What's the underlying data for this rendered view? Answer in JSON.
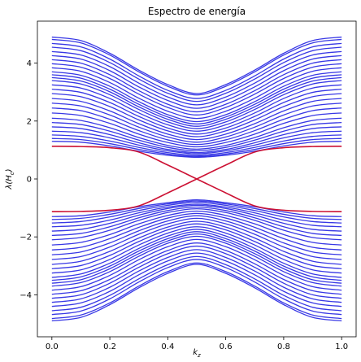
{
  "chart_data": {
    "type": "line",
    "title": "Espectro de energía",
    "xlabel": "k",
    "xlabel_sub": "z",
    "ylabel_pre": "λ(H",
    "ylabel_sub": "c",
    "ylabel_post": ")",
    "xlim": [
      -0.05,
      1.05
    ],
    "ylim": [
      -5.45,
      5.45
    ],
    "xticks": [
      0.0,
      0.2,
      0.4,
      0.6,
      0.8,
      1.0
    ],
    "xtick_labels": [
      "0.0",
      "0.2",
      "0.4",
      "0.6",
      "0.8",
      "1.0"
    ],
    "yticks": [
      -4,
      -2,
      0,
      2,
      4
    ],
    "ytick_labels": [
      "−4",
      "−2",
      "0",
      "2",
      "4"
    ],
    "grid": false,
    "colors": {
      "bulk": "#1515e0",
      "edge": "#cc1133"
    },
    "x": [
      0.0,
      0.1,
      0.2,
      0.3,
      0.4,
      0.5,
      0.6,
      0.7,
      0.8,
      0.9,
      1.0
    ],
    "series": [
      {
        "group": "edge",
        "values": [
          1.13,
          1.12,
          1.08,
          0.93,
          0.48,
          0.0,
          -0.48,
          -0.93,
          -1.08,
          -1.12,
          -1.13
        ]
      },
      {
        "group": "edge",
        "values": [
          -1.13,
          -1.12,
          -1.08,
          -0.93,
          -0.48,
          0.0,
          0.48,
          0.93,
          1.08,
          1.12,
          1.13
        ]
      },
      {
        "group": "bulk",
        "values": [
          4.9,
          4.78,
          4.34,
          3.76,
          3.26,
          2.95,
          3.26,
          3.76,
          4.34,
          4.78,
          4.9
        ]
      },
      {
        "group": "bulk",
        "values": [
          4.82,
          4.7,
          4.28,
          3.7,
          3.2,
          2.9,
          3.2,
          3.7,
          4.28,
          4.7,
          4.82
        ]
      },
      {
        "group": "bulk",
        "values": [
          4.68,
          4.56,
          4.14,
          3.56,
          3.06,
          2.78,
          3.06,
          3.56,
          4.14,
          4.56,
          4.68
        ]
      },
      {
        "group": "bulk",
        "values": [
          4.55,
          4.43,
          4.02,
          3.45,
          2.96,
          2.68,
          2.96,
          3.45,
          4.02,
          4.43,
          4.55
        ]
      },
      {
        "group": "bulk",
        "values": [
          4.4,
          4.28,
          3.88,
          3.31,
          2.83,
          2.56,
          2.83,
          3.31,
          3.88,
          4.28,
          4.4
        ]
      },
      {
        "group": "bulk",
        "values": [
          4.26,
          4.14,
          3.74,
          3.18,
          2.71,
          2.44,
          2.71,
          3.18,
          3.74,
          4.14,
          4.26
        ]
      },
      {
        "group": "bulk",
        "values": [
          4.12,
          4.0,
          3.6,
          3.05,
          2.58,
          2.32,
          2.58,
          3.05,
          3.6,
          4.0,
          4.12
        ]
      },
      {
        "group": "bulk",
        "values": [
          3.98,
          3.86,
          3.47,
          2.93,
          2.47,
          2.21,
          2.47,
          2.93,
          3.47,
          3.86,
          3.98
        ]
      },
      {
        "group": "bulk",
        "values": [
          3.84,
          3.72,
          3.33,
          2.79,
          2.34,
          2.09,
          2.34,
          2.79,
          3.33,
          3.72,
          3.84
        ]
      },
      {
        "group": "bulk",
        "values": [
          3.7,
          3.58,
          3.2,
          2.67,
          2.22,
          1.98,
          2.22,
          2.67,
          3.2,
          3.58,
          3.7
        ]
      },
      {
        "group": "bulk",
        "values": [
          3.6,
          3.48,
          3.1,
          2.58,
          2.14,
          1.9,
          2.14,
          2.58,
          3.1,
          3.48,
          3.6
        ]
      },
      {
        "group": "bulk",
        "values": [
          3.5,
          3.38,
          3.01,
          2.49,
          2.06,
          1.82,
          2.06,
          2.49,
          3.01,
          3.38,
          3.5
        ]
      },
      {
        "group": "bulk",
        "values": [
          3.4,
          3.28,
          2.91,
          2.4,
          1.97,
          1.74,
          1.97,
          2.4,
          2.91,
          3.28,
          3.4
        ]
      },
      {
        "group": "bulk",
        "values": [
          3.25,
          3.14,
          2.78,
          2.28,
          1.87,
          1.65,
          1.87,
          2.28,
          2.78,
          3.14,
          3.25
        ]
      },
      {
        "group": "bulk",
        "values": [
          3.1,
          2.99,
          2.64,
          2.16,
          1.76,
          1.55,
          1.76,
          2.16,
          2.64,
          2.99,
          3.1
        ]
      },
      {
        "group": "bulk",
        "values": [
          2.95,
          2.84,
          2.5,
          2.04,
          1.66,
          1.46,
          1.66,
          2.04,
          2.5,
          2.84,
          2.95
        ]
      },
      {
        "group": "bulk",
        "values": [
          2.78,
          2.68,
          2.35,
          1.91,
          1.55,
          1.36,
          1.55,
          1.91,
          2.35,
          2.68,
          2.78
        ]
      },
      {
        "group": "bulk",
        "values": [
          2.62,
          2.52,
          2.21,
          1.79,
          1.45,
          1.27,
          1.45,
          1.79,
          2.21,
          2.52,
          2.62
        ]
      },
      {
        "group": "bulk",
        "values": [
          2.45,
          2.36,
          2.06,
          1.67,
          1.35,
          1.19,
          1.35,
          1.67,
          2.06,
          2.36,
          2.45
        ]
      },
      {
        "group": "bulk",
        "values": [
          2.28,
          2.19,
          1.92,
          1.55,
          1.26,
          1.11,
          1.26,
          1.55,
          1.92,
          2.19,
          2.28
        ]
      },
      {
        "group": "bulk",
        "values": [
          2.1,
          2.02,
          1.77,
          1.43,
          1.16,
          1.03,
          1.16,
          1.43,
          1.77,
          2.02,
          2.1
        ]
      },
      {
        "group": "bulk",
        "values": [
          1.95,
          1.88,
          1.65,
          1.34,
          1.09,
          0.97,
          1.09,
          1.34,
          1.65,
          1.88,
          1.95
        ]
      },
      {
        "group": "bulk",
        "values": [
          1.8,
          1.74,
          1.53,
          1.25,
          1.02,
          0.91,
          1.02,
          1.25,
          1.53,
          1.74,
          1.8
        ]
      },
      {
        "group": "bulk",
        "values": [
          1.65,
          1.6,
          1.42,
          1.17,
          0.97,
          0.87,
          0.97,
          1.17,
          1.42,
          1.6,
          1.65
        ]
      },
      {
        "group": "bulk",
        "values": [
          1.52,
          1.47,
          1.31,
          1.09,
          0.91,
          0.82,
          0.91,
          1.09,
          1.31,
          1.47,
          1.52
        ]
      },
      {
        "group": "bulk",
        "values": [
          1.4,
          1.36,
          1.22,
          1.02,
          0.86,
          0.78,
          0.86,
          1.02,
          1.22,
          1.36,
          1.4
        ]
      },
      {
        "group": "bulk",
        "values": [
          1.3,
          1.27,
          1.14,
          0.96,
          0.82,
          0.75,
          0.82,
          0.96,
          1.14,
          1.27,
          1.3
        ]
      },
      {
        "group": "bulk",
        "values": [
          -1.3,
          -1.27,
          -1.14,
          -0.96,
          -0.82,
          -0.72,
          -0.82,
          -0.96,
          -1.14,
          -1.27,
          -1.3
        ]
      },
      {
        "group": "bulk",
        "values": [
          -1.4,
          -1.36,
          -1.22,
          -1.02,
          -0.86,
          -0.76,
          -0.86,
          -1.02,
          -1.22,
          -1.36,
          -1.4
        ]
      },
      {
        "group": "bulk",
        "values": [
          -1.52,
          -1.47,
          -1.31,
          -1.09,
          -0.91,
          -0.81,
          -0.91,
          -1.09,
          -1.31,
          -1.47,
          -1.52
        ]
      },
      {
        "group": "bulk",
        "values": [
          -1.65,
          -1.6,
          -1.42,
          -1.17,
          -0.97,
          -0.87,
          -0.97,
          -1.17,
          -1.42,
          -1.6,
          -1.65
        ]
      },
      {
        "group": "bulk",
        "values": [
          -1.8,
          -1.74,
          -1.53,
          -1.25,
          -1.02,
          -0.91,
          -1.02,
          -1.25,
          -1.53,
          -1.74,
          -1.8
        ]
      },
      {
        "group": "bulk",
        "values": [
          -1.95,
          -1.88,
          -1.65,
          -1.34,
          -1.09,
          -0.97,
          -1.09,
          -1.34,
          -1.65,
          -1.88,
          -1.95
        ]
      },
      {
        "group": "bulk",
        "values": [
          -2.1,
          -2.02,
          -1.77,
          -1.43,
          -1.16,
          -1.03,
          -1.16,
          -1.43,
          -1.77,
          -2.02,
          -2.1
        ]
      },
      {
        "group": "bulk",
        "values": [
          -2.28,
          -2.19,
          -1.92,
          -1.55,
          -1.26,
          -1.11,
          -1.26,
          -1.55,
          -1.92,
          -2.19,
          -2.28
        ]
      },
      {
        "group": "bulk",
        "values": [
          -2.45,
          -2.36,
          -2.06,
          -1.67,
          -1.35,
          -1.19,
          -1.35,
          -1.67,
          -2.06,
          -2.36,
          -2.45
        ]
      },
      {
        "group": "bulk",
        "values": [
          -2.62,
          -2.52,
          -2.21,
          -1.79,
          -1.45,
          -1.27,
          -1.45,
          -1.79,
          -2.21,
          -2.52,
          -2.62
        ]
      },
      {
        "group": "bulk",
        "values": [
          -2.78,
          -2.68,
          -2.35,
          -1.91,
          -1.55,
          -1.36,
          -1.55,
          -1.91,
          -2.35,
          -2.68,
          -2.78
        ]
      },
      {
        "group": "bulk",
        "values": [
          -2.95,
          -2.84,
          -2.5,
          -2.04,
          -1.66,
          -1.46,
          -1.66,
          -2.04,
          -2.5,
          -2.84,
          -2.95
        ]
      },
      {
        "group": "bulk",
        "values": [
          -3.1,
          -2.99,
          -2.64,
          -2.16,
          -1.76,
          -1.55,
          -1.76,
          -2.16,
          -2.64,
          -2.99,
          -3.1
        ]
      },
      {
        "group": "bulk",
        "values": [
          -3.25,
          -3.14,
          -2.78,
          -2.28,
          -1.87,
          -1.65,
          -1.87,
          -2.28,
          -2.78,
          -3.14,
          -3.25
        ]
      },
      {
        "group": "bulk",
        "values": [
          -3.4,
          -3.28,
          -2.91,
          -2.4,
          -1.97,
          -1.74,
          -1.97,
          -2.4,
          -2.91,
          -3.28,
          -3.4
        ]
      },
      {
        "group": "bulk",
        "values": [
          -3.5,
          -3.38,
          -3.01,
          -2.49,
          -2.06,
          -1.82,
          -2.06,
          -2.49,
          -3.01,
          -3.38,
          -3.5
        ]
      },
      {
        "group": "bulk",
        "values": [
          -3.6,
          -3.48,
          -3.1,
          -2.58,
          -2.14,
          -1.9,
          -2.14,
          -2.58,
          -3.1,
          -3.48,
          -3.6
        ]
      },
      {
        "group": "bulk",
        "values": [
          -3.7,
          -3.58,
          -3.2,
          -2.67,
          -2.22,
          -1.98,
          -2.22,
          -2.67,
          -3.2,
          -3.58,
          -3.7
        ]
      },
      {
        "group": "bulk",
        "values": [
          -3.84,
          -3.72,
          -3.33,
          -2.79,
          -2.34,
          -2.09,
          -2.34,
          -2.79,
          -3.33,
          -3.72,
          -3.84
        ]
      },
      {
        "group": "bulk",
        "values": [
          -3.98,
          -3.86,
          -3.47,
          -2.93,
          -2.47,
          -2.21,
          -2.47,
          -2.93,
          -3.47,
          -3.86,
          -3.98
        ]
      },
      {
        "group": "bulk",
        "values": [
          -4.12,
          -4.0,
          -3.6,
          -3.05,
          -2.58,
          -2.32,
          -2.58,
          -3.05,
          -3.6,
          -4.0,
          -4.12
        ]
      },
      {
        "group": "bulk",
        "values": [
          -4.26,
          -4.14,
          -3.74,
          -3.18,
          -2.71,
          -2.44,
          -2.71,
          -3.18,
          -3.74,
          -4.14,
          -4.26
        ]
      },
      {
        "group": "bulk",
        "values": [
          -4.4,
          -4.28,
          -3.88,
          -3.31,
          -2.83,
          -2.56,
          -2.83,
          -3.31,
          -3.88,
          -4.28,
          -4.4
        ]
      },
      {
        "group": "bulk",
        "values": [
          -4.55,
          -4.43,
          -4.02,
          -3.45,
          -2.96,
          -2.68,
          -2.96,
          -3.45,
          -4.02,
          -4.43,
          -4.55
        ]
      },
      {
        "group": "bulk",
        "values": [
          -4.68,
          -4.56,
          -4.14,
          -3.56,
          -3.06,
          -2.78,
          -3.06,
          -3.56,
          -4.14,
          -4.56,
          -4.68
        ]
      },
      {
        "group": "bulk",
        "values": [
          -4.82,
          -4.7,
          -4.28,
          -3.7,
          -3.2,
          -2.9,
          -3.2,
          -3.7,
          -4.28,
          -4.7,
          -4.82
        ]
      },
      {
        "group": "bulk",
        "values": [
          -4.9,
          -4.78,
          -4.34,
          -3.76,
          -3.26,
          -2.95,
          -3.26,
          -3.76,
          -4.34,
          -4.78,
          -4.9
        ]
      }
    ]
  }
}
